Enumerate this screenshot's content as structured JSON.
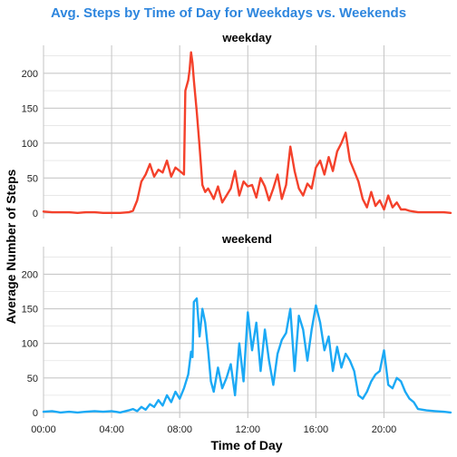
{
  "chart_data": {
    "type": "line",
    "title": "Avg. Steps by Time of Day for Weekdays vs. Weekends",
    "title_color": "#2E86DE",
    "xlabel": "Time of Day",
    "ylabel": "Average Number of Steps",
    "x_unit": "minutes since 00:00",
    "xlim": [
      0,
      1435
    ],
    "ylim": [
      -8,
      240
    ],
    "x_ticks": [
      {
        "value": 0,
        "label": "00:00"
      },
      {
        "value": 240,
        "label": "04:00"
      },
      {
        "value": 480,
        "label": "08:00"
      },
      {
        "value": 720,
        "label": "12:00"
      },
      {
        "value": 960,
        "label": "16:00"
      },
      {
        "value": 1200,
        "label": "20:00"
      }
    ],
    "y_ticks": [
      {
        "value": 0,
        "label": "0"
      },
      {
        "value": 50,
        "label": "50"
      },
      {
        "value": 100,
        "label": "100"
      },
      {
        "value": 150,
        "label": "150"
      },
      {
        "value": 200,
        "label": "200"
      }
    ],
    "grid": true,
    "legend": "none",
    "panels": [
      {
        "name": "weekday",
        "color": "#F4412B",
        "x": [
          0,
          30,
          60,
          90,
          120,
          150,
          180,
          210,
          240,
          270,
          300,
          315,
          330,
          345,
          360,
          375,
          390,
          405,
          420,
          435,
          450,
          465,
          480,
          495,
          500,
          510,
          515,
          520,
          525,
          530,
          540,
          550,
          560,
          570,
          580,
          590,
          600,
          615,
          630,
          645,
          660,
          675,
          690,
          705,
          720,
          735,
          750,
          765,
          780,
          795,
          810,
          825,
          840,
          855,
          870,
          885,
          900,
          915,
          930,
          945,
          960,
          975,
          990,
          1005,
          1020,
          1035,
          1050,
          1065,
          1080,
          1095,
          1110,
          1125,
          1140,
          1155,
          1170,
          1185,
          1200,
          1215,
          1230,
          1245,
          1260,
          1275,
          1290,
          1305,
          1320,
          1350,
          1380,
          1410,
          1435
        ],
        "values": [
          2,
          1,
          1,
          1,
          0,
          1,
          1,
          0,
          0,
          0,
          1,
          3,
          18,
          45,
          55,
          70,
          52,
          62,
          58,
          75,
          52,
          65,
          60,
          55,
          175,
          190,
          205,
          230,
          215,
          190,
          145,
          95,
          40,
          30,
          35,
          28,
          20,
          38,
          15,
          25,
          35,
          60,
          25,
          45,
          38,
          40,
          22,
          50,
          38,
          18,
          35,
          55,
          20,
          40,
          95,
          60,
          35,
          25,
          42,
          35,
          65,
          75,
          55,
          80,
          60,
          88,
          100,
          115,
          75,
          60,
          45,
          20,
          8,
          30,
          10,
          18,
          5,
          25,
          8,
          15,
          5,
          5,
          3,
          2,
          1,
          1,
          1,
          1,
          0
        ]
      },
      {
        "name": "weekend",
        "color": "#1BA9F5",
        "x": [
          0,
          30,
          60,
          90,
          120,
          150,
          180,
          210,
          240,
          270,
          300,
          315,
          330,
          345,
          360,
          375,
          390,
          405,
          420,
          435,
          450,
          465,
          480,
          495,
          510,
          520,
          525,
          530,
          540,
          550,
          560,
          570,
          580,
          590,
          600,
          615,
          630,
          645,
          660,
          675,
          690,
          705,
          720,
          735,
          750,
          765,
          780,
          795,
          810,
          825,
          840,
          855,
          870,
          885,
          900,
          915,
          930,
          945,
          960,
          975,
          990,
          1005,
          1020,
          1035,
          1050,
          1065,
          1080,
          1095,
          1110,
          1125,
          1140,
          1155,
          1170,
          1185,
          1200,
          1215,
          1230,
          1245,
          1260,
          1275,
          1290,
          1305,
          1320,
          1350,
          1380,
          1410,
          1435
        ],
        "values": [
          1,
          2,
          0,
          1,
          0,
          1,
          2,
          1,
          2,
          0,
          3,
          5,
          2,
          8,
          4,
          12,
          8,
          18,
          10,
          25,
          15,
          30,
          20,
          35,
          55,
          88,
          80,
          160,
          165,
          110,
          150,
          130,
          90,
          45,
          30,
          65,
          35,
          50,
          70,
          25,
          100,
          45,
          145,
          90,
          130,
          60,
          120,
          75,
          40,
          85,
          105,
          115,
          150,
          60,
          140,
          120,
          75,
          120,
          155,
          130,
          90,
          110,
          60,
          95,
          65,
          85,
          75,
          60,
          25,
          20,
          30,
          45,
          55,
          60,
          90,
          40,
          35,
          50,
          45,
          30,
          20,
          15,
          5,
          3,
          2,
          1,
          0
        ]
      }
    ]
  }
}
